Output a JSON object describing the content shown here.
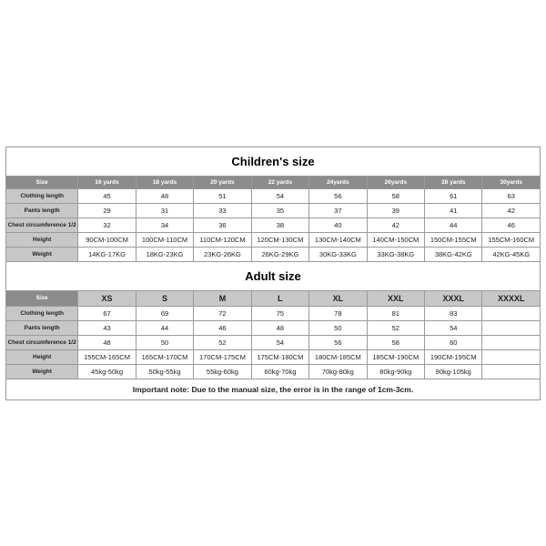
{
  "children": {
    "title": "Children's size",
    "row_labels": [
      "Size",
      "Clothing length",
      "Pants length",
      "Chest circumference 1/2",
      "Height",
      "Weight"
    ],
    "columns": [
      "16 yards",
      "18 yards",
      "20 yards",
      "22 yards",
      "24yards",
      "26yards",
      "28 yards",
      "30yards"
    ],
    "rows": [
      [
        "45",
        "48",
        "51",
        "54",
        "56",
        "58",
        "61",
        "63"
      ],
      [
        "29",
        "31",
        "33",
        "35",
        "37",
        "39",
        "41",
        "42"
      ],
      [
        "32",
        "34",
        "36",
        "38",
        "40",
        "42",
        "44",
        "46"
      ],
      [
        "90CM-100CM",
        "100CM-110CM",
        "110CM-120CM",
        "120CM-130CM",
        "130CM-140CM",
        "140CM-150CM",
        "150CM-155CM",
        "155CM-160CM"
      ],
      [
        "14KG-17KG",
        "18KG-23KG",
        "23KG-26KG",
        "26KG-29KG",
        "30KG-33KG",
        "33KG-38KG",
        "38KG-42KG",
        "42KG-45KG"
      ]
    ]
  },
  "adult": {
    "title": "Adult size",
    "row_labels": [
      "Size",
      "Clothing length",
      "Pants length",
      "Chest circumference 1/2",
      "Height",
      "Weight"
    ],
    "columns": [
      "XS",
      "S",
      "M",
      "L",
      "XL",
      "XXL",
      "XXXL",
      "XXXXL"
    ],
    "rows": [
      [
        "67",
        "69",
        "72",
        "75",
        "78",
        "81",
        "83",
        ""
      ],
      [
        "43",
        "44",
        "46",
        "48",
        "50",
        "52",
        "54",
        ""
      ],
      [
        "48",
        "50",
        "52",
        "54",
        "56",
        "58",
        "60",
        ""
      ],
      [
        "155CM-165CM",
        "165CM-170CM",
        "170CM-175CM",
        "175CM-180CM",
        "180CM-185CM",
        "185CM-190CM",
        "190CM-195CM",
        ""
      ],
      [
        "45kg-50kg",
        "50kg-55kg",
        "55kg-60kg",
        "60kg-70kg",
        "70kg-80kg",
        "80kg-90kg",
        "90kg-105kg",
        ""
      ]
    ]
  },
  "note": "Important note: Due to the manual size, the error is in the range of 1cm-3cm."
}
